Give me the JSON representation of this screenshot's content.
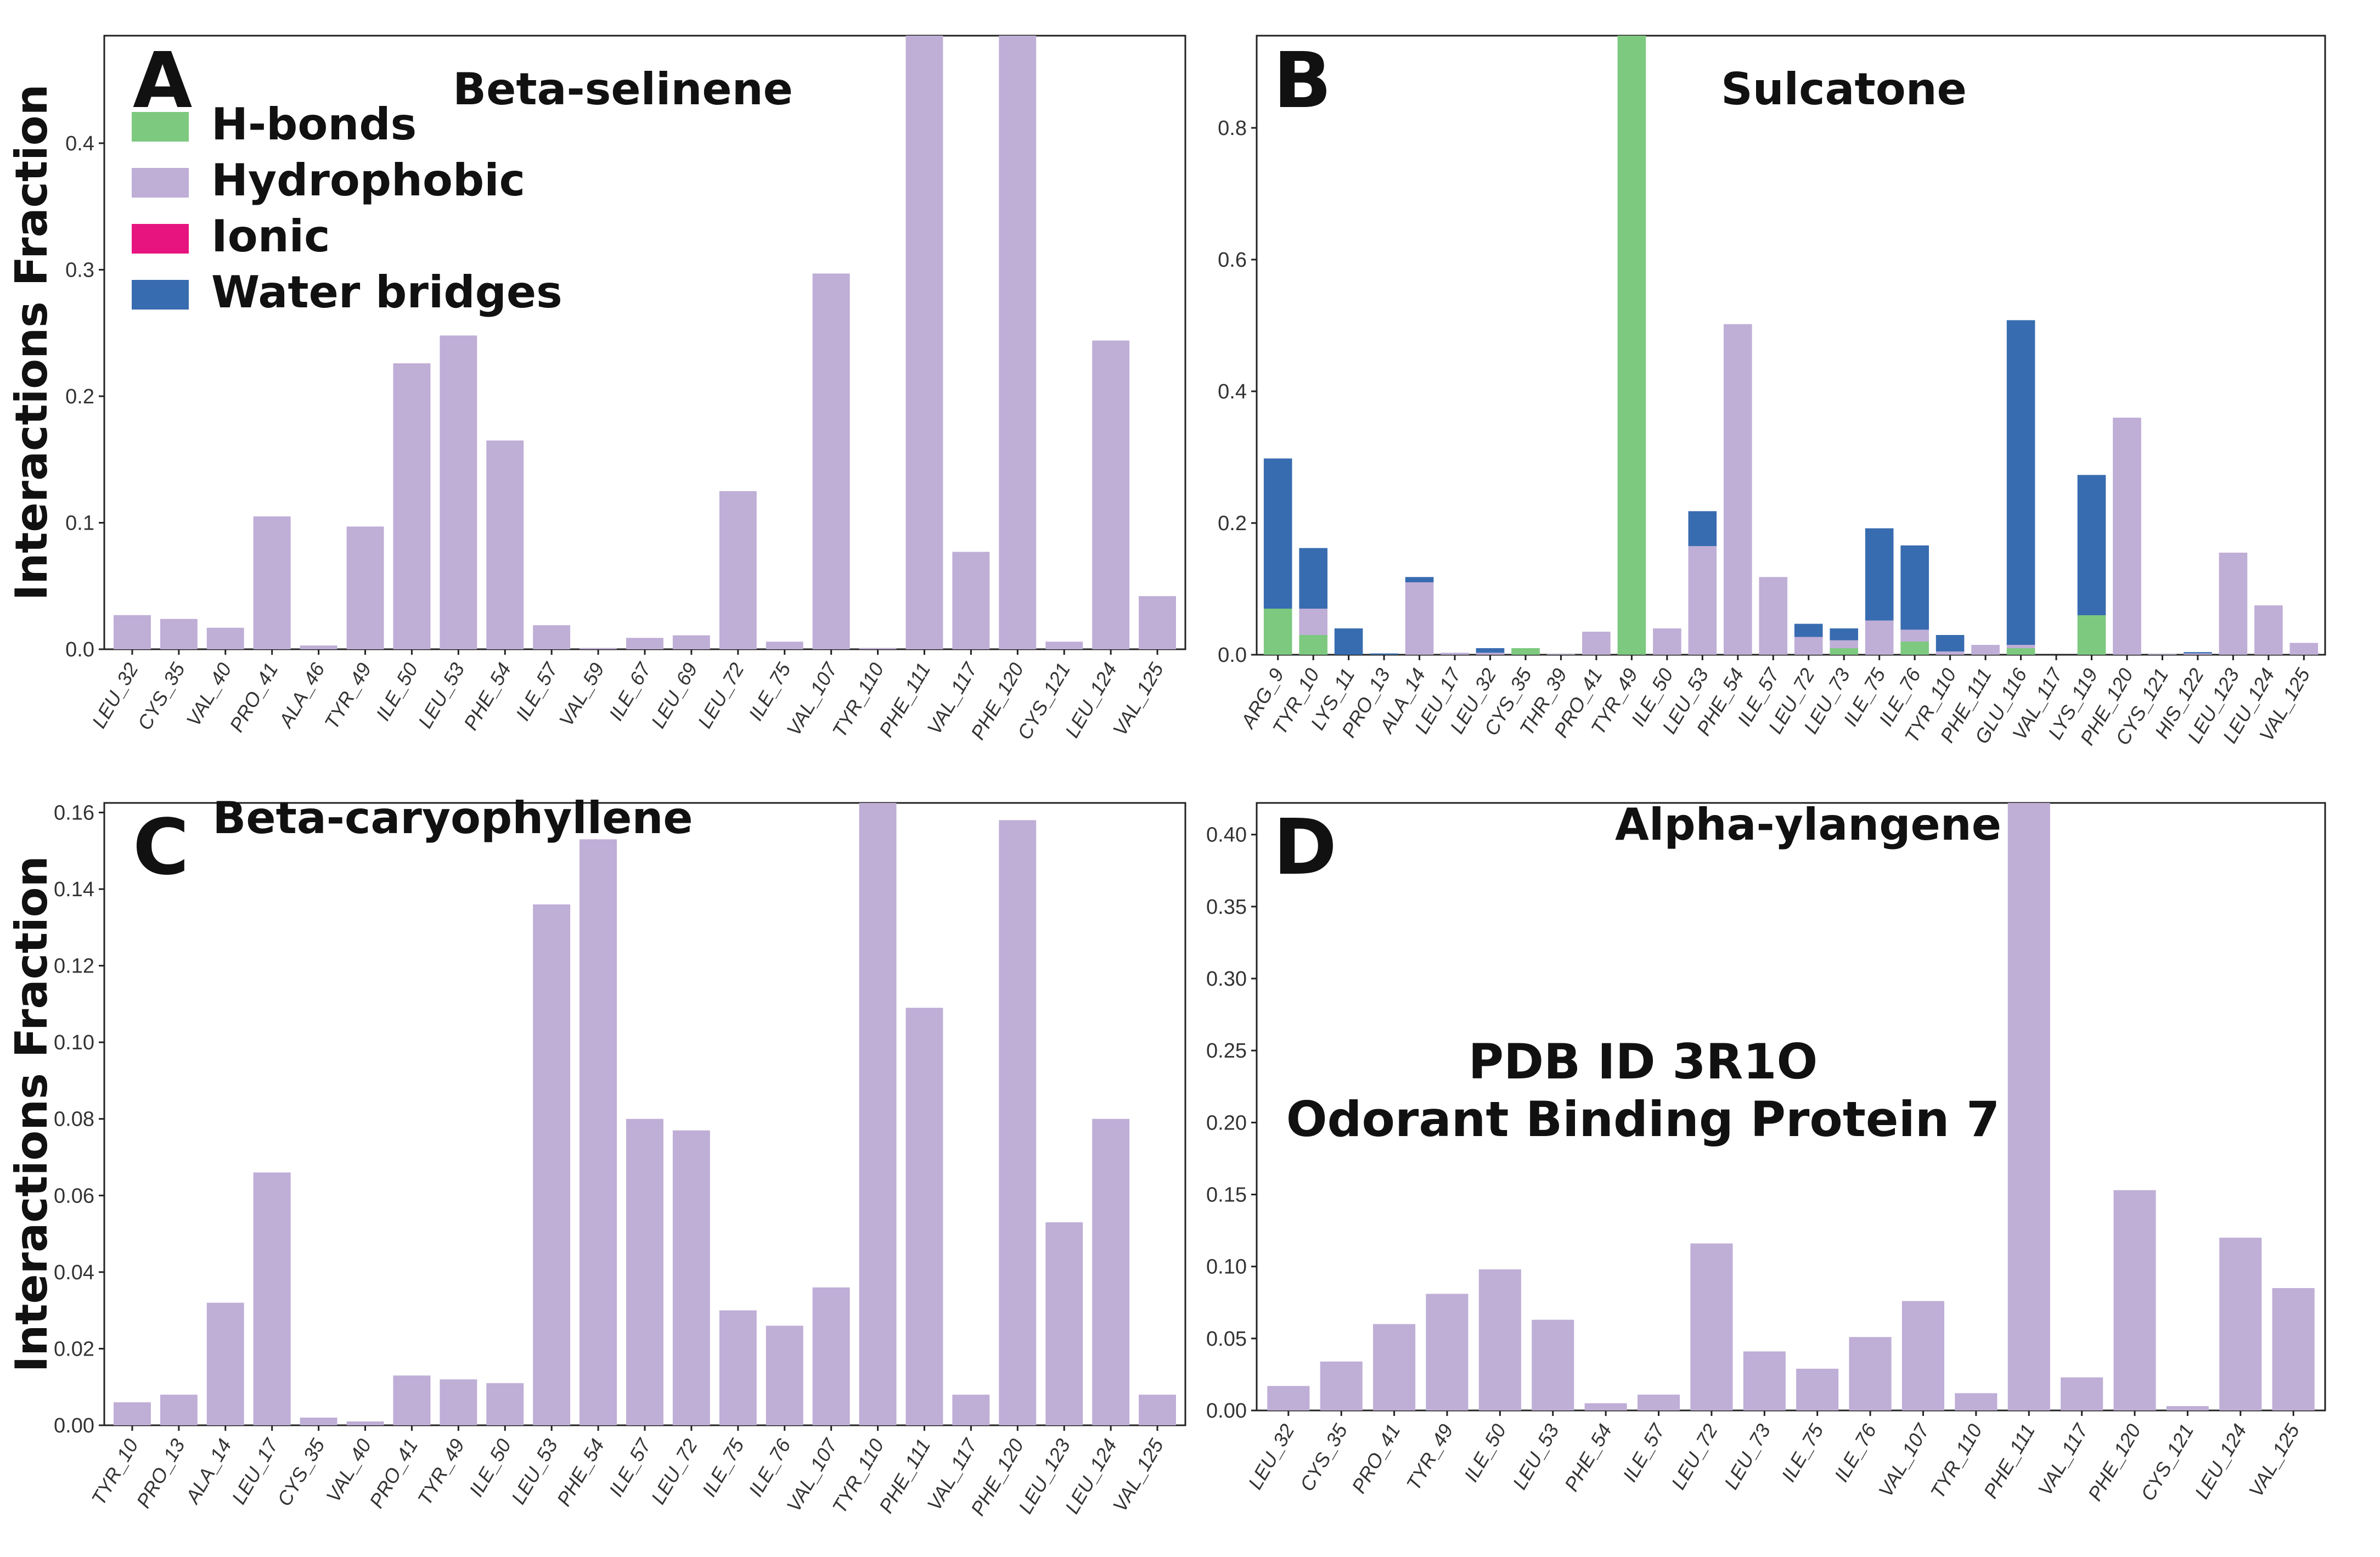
{
  "colors": {
    "h_bonds": "#7dc97f",
    "hydrophobic": "#bfaed6",
    "ionic": "#e7147f",
    "water_bridges": "#386cb0"
  },
  "legend": {
    "items": [
      {
        "key": "h_bonds",
        "label": "H-bonds"
      },
      {
        "key": "hydrophobic",
        "label": "Hydrophobic"
      },
      {
        "key": "ionic",
        "label": "Ionic"
      },
      {
        "key": "water_bridges",
        "label": "Water bridges"
      }
    ]
  },
  "annotation": {
    "line1": "PDB ID  3R1O",
    "line2": "Odorant Binding Protein 7"
  },
  "chart_data": [
    {
      "panel": "A",
      "type": "bar",
      "stacked": true,
      "title": "Beta-selinene",
      "ylabel": "Interactions Fraction",
      "xlabel": "",
      "ylim": [
        0,
        0.485
      ],
      "yticks": [
        0.0,
        0.1,
        0.2,
        0.3,
        0.4
      ],
      "ytick_labels": [
        "0.0",
        "0.1",
        "0.2",
        "0.3",
        "0.4"
      ],
      "categories": [
        "LEU_32",
        "CYS_35",
        "VAL_40",
        "PRO_41",
        "ALA_46",
        "TYR_49",
        "ILE_50",
        "LEU_53",
        "PHE_54",
        "ILE_57",
        "VAL_59",
        "ILE_67",
        "LEU_69",
        "LEU_72",
        "ILE_75",
        "VAL_107",
        "TYR_110",
        "PHE_111",
        "VAL_117",
        "PHE_120",
        "CYS_121",
        "LEU_124",
        "VAL_125"
      ],
      "series": [
        {
          "name": "Hydrophobic",
          "key": "hydrophobic",
          "values": [
            0.027,
            0.024,
            0.017,
            0.105,
            0.003,
            0.097,
            0.226,
            0.248,
            0.165,
            0.019,
            0.001,
            0.009,
            0.011,
            0.125,
            0.006,
            0.297,
            0.001,
            0.485,
            0.077,
            0.485,
            0.006,
            0.244,
            0.042
          ]
        }
      ]
    },
    {
      "panel": "B",
      "type": "bar",
      "stacked": true,
      "title": "Sulcatone",
      "ylabel": "",
      "xlabel": "",
      "ylim": [
        0,
        0.94
      ],
      "yticks": [
        0.0,
        0.2,
        0.4,
        0.6,
        0.8
      ],
      "ytick_labels": [
        "0.0",
        "0.2",
        "0.4",
        "0.6",
        "0.8"
      ],
      "categories": [
        "ARG_9",
        "TYR_10",
        "LYS_11",
        "PRO_13",
        "ALA_14",
        "LEU_17",
        "LEU_32",
        "CYS_35",
        "THR_39",
        "PRO_41",
        "TYR_49",
        "ILE_50",
        "LEU_53",
        "PHE_54",
        "ILE_57",
        "LEU_72",
        "LEU_73",
        "ILE_75",
        "ILE_76",
        "TYR_110",
        "PHE_111",
        "GLU_116",
        "VAL_117",
        "LYS_119",
        "PHE_120",
        "CYS_121",
        "HIS_122",
        "LEU_123",
        "LEU_124",
        "VAL_125"
      ],
      "series": [
        {
          "name": "H-bonds",
          "key": "h_bonds",
          "values": [
            0.07,
            0.03,
            0,
            0,
            0,
            0,
            0,
            0.01,
            0,
            0,
            0.94,
            0,
            0,
            0,
            0,
            0,
            0.01,
            0,
            0.02,
            0,
            0,
            0.01,
            0,
            0.06,
            0,
            0,
            0,
            0,
            0,
            0
          ]
        },
        {
          "name": "Hydrophobic",
          "key": "hydrophobic",
          "values": [
            0,
            0.04,
            0,
            0,
            0.11,
            0.003,
            0.003,
            0,
            0.001,
            0.035,
            0,
            0.04,
            0.165,
            0.502,
            0.118,
            0.027,
            0.012,
            0.052,
            0.018,
            0.005,
            0.015,
            0.005,
            0,
            0,
            0.36,
            0.001,
            0.002,
            0.155,
            0.075,
            0.018
          ]
        },
        {
          "name": "Water bridges",
          "key": "water_bridges",
          "values": [
            0.228,
            0.092,
            0.04,
            0.002,
            0.008,
            0,
            0.007,
            0,
            0,
            0,
            0,
            0,
            0.053,
            0,
            0,
            0.02,
            0.018,
            0.14,
            0.128,
            0.025,
            0,
            0.493,
            0,
            0.213,
            0,
            0,
            0.002,
            0,
            0,
            0
          ]
        }
      ]
    },
    {
      "panel": "C",
      "type": "bar",
      "stacked": true,
      "title": "Beta-caryophyllene",
      "ylabel": "Interactions Fraction",
      "xlabel": "",
      "ylim": [
        0,
        0.1625
      ],
      "yticks": [
        0.0,
        0.02,
        0.04,
        0.06,
        0.08,
        0.1,
        0.12,
        0.14,
        0.16
      ],
      "ytick_labels": [
        "0.00",
        "0.02",
        "0.04",
        "0.06",
        "0.08",
        "0.10",
        "0.12",
        "0.14",
        "0.16"
      ],
      "categories": [
        "TYR_10",
        "PRO_13",
        "ALA_14",
        "LEU_17",
        "CYS_35",
        "VAL_40",
        "PRO_41",
        "TYR_49",
        "ILE_50",
        "LEU_53",
        "PHE_54",
        "ILE_57",
        "LEU_72",
        "ILE_75",
        "ILE_76",
        "VAL_107",
        "TYR_110",
        "PHE_111",
        "VAL_117",
        "PHE_120",
        "LEU_123",
        "LEU_124",
        "VAL_125"
      ],
      "series": [
        {
          "name": "Hydrophobic",
          "key": "hydrophobic",
          "values": [
            0.006,
            0.008,
            0.032,
            0.066,
            0.002,
            0.001,
            0.013,
            0.012,
            0.011,
            0.136,
            0.153,
            0.08,
            0.077,
            0.03,
            0.026,
            0.036,
            0.1625,
            0.109,
            0.008,
            0.158,
            0.053,
            0.08,
            0.008
          ]
        }
      ]
    },
    {
      "panel": "D",
      "type": "bar",
      "stacked": true,
      "title": "Alpha-ylangene",
      "ylabel": "",
      "xlabel": "",
      "ylim": [
        0,
        0.422
      ],
      "yticks": [
        0.0,
        0.05,
        0.1,
        0.15,
        0.2,
        0.25,
        0.3,
        0.35,
        0.4
      ],
      "ytick_labels": [
        "0.00",
        "0.05",
        "0.10",
        "0.15",
        "0.20",
        "0.25",
        "0.30",
        "0.35",
        "0.40"
      ],
      "categories": [
        "LEU_32",
        "CYS_35",
        "PRO_41",
        "TYR_49",
        "ILE_50",
        "LEU_53",
        "PHE_54",
        "ILE_57",
        "LEU_72",
        "LEU_73",
        "ILE_75",
        "ILE_76",
        "VAL_107",
        "TYR_110",
        "PHE_111",
        "VAL_117",
        "PHE_120",
        "CYS_121",
        "LEU_124",
        "VAL_125"
      ],
      "series": [
        {
          "name": "Hydrophobic",
          "key": "hydrophobic",
          "values": [
            0.017,
            0.034,
            0.06,
            0.081,
            0.098,
            0.063,
            0.005,
            0.011,
            0.116,
            0.041,
            0.029,
            0.051,
            0.076,
            0.012,
            0.422,
            0.023,
            0.153,
            0.003,
            0.12,
            0.085
          ]
        }
      ]
    }
  ]
}
